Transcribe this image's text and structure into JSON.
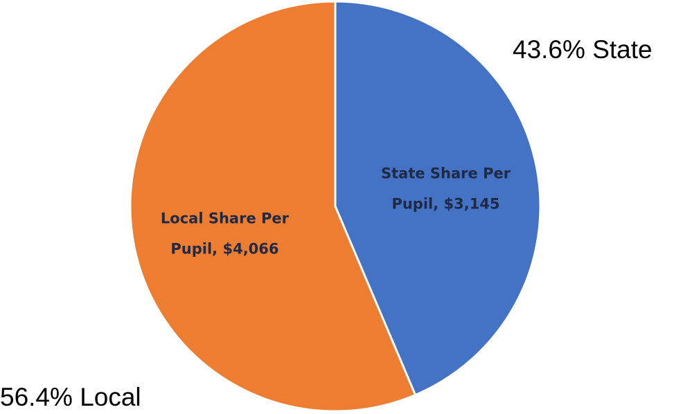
{
  "chart_data": {
    "type": "pie",
    "categories": [
      "State",
      "Local"
    ],
    "values": [
      3145,
      4066
    ],
    "value_labels": [
      [
        "State Share Per",
        "Pupil, $3,145"
      ],
      [
        "Local Share Per",
        "Pupil, $4,066"
      ]
    ],
    "percents": [
      {
        "value": 43.6,
        "label": "43.6%"
      },
      {
        "value": 56.4,
        "label": "56.4%"
      }
    ],
    "colors": [
      "#4472c4",
      "#ed7d31"
    ],
    "start_angle": 0,
    "direction": "clockwise"
  }
}
